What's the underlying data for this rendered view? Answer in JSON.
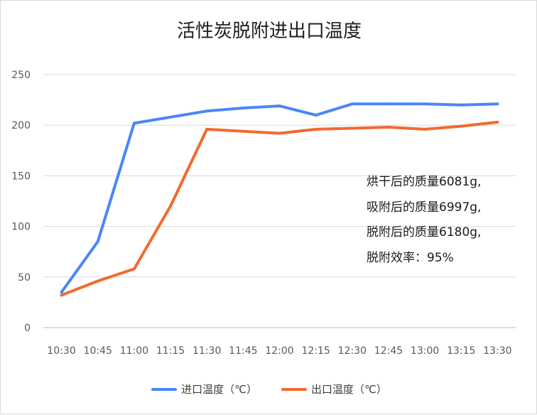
{
  "chart_data": {
    "type": "line",
    "title": "活性炭脱附进出口温度",
    "xlabel": "",
    "ylabel": "",
    "categories": [
      "10:30",
      "10:45",
      "11:00",
      "11:15",
      "11:30",
      "11:45",
      "12:00",
      "12:15",
      "12:30",
      "12:45",
      "13:00",
      "13:15",
      "13:30"
    ],
    "ylim": [
      0,
      250
    ],
    "yticks": [
      0,
      50,
      100,
      150,
      200,
      250
    ],
    "grid": true,
    "legend_position": "bottom",
    "series": [
      {
        "name": "进口温度（℃）",
        "color": "#4a86f5",
        "values": [
          35,
          85,
          202,
          208,
          214,
          217,
          219,
          210,
          221,
          221,
          221,
          220,
          221
        ]
      },
      {
        "name": "出口温度（℃）",
        "color": "#f26a2e",
        "values": [
          32,
          46,
          58,
          120,
          196,
          194,
          192,
          196,
          197,
          198,
          196,
          199,
          203
        ]
      }
    ],
    "annotations": [
      "烘干后的质量6081g,",
      "吸附后的质量6997g,",
      "脱附后的质量6180g,",
      "脱附效率：95%"
    ]
  }
}
